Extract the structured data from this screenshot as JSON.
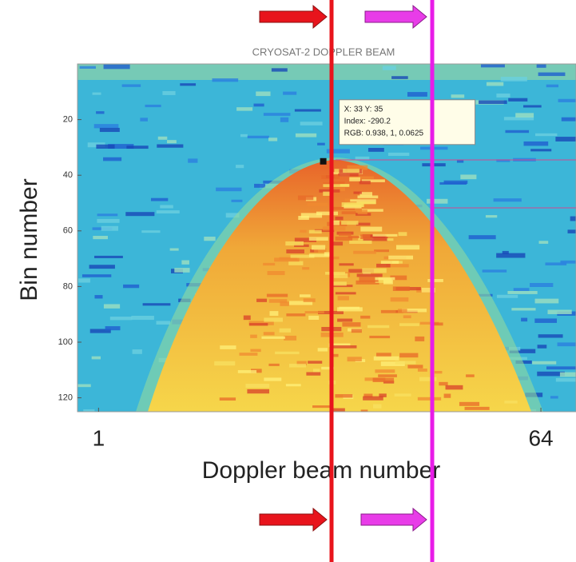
{
  "chart_data": {
    "type": "heatmap",
    "title": "CRYOSAT-2 DOPPLER BEAM",
    "x_label": "Doppler beam number",
    "y_label": "Bin number",
    "xlim": [
      -2,
      69
    ],
    "xticks": [
      1,
      64
    ],
    "ylim": [
      0,
      125
    ],
    "yticks": [
      20,
      40,
      60,
      80,
      100,
      120
    ],
    "y_inverted": true,
    "datatip": {
      "x": 33,
      "y": 35,
      "lines": [
        "X: 33 Y: 35",
        "Index: -290.2",
        "RGB: 0.938, 1, 0.0625"
      ]
    }
  }
}
